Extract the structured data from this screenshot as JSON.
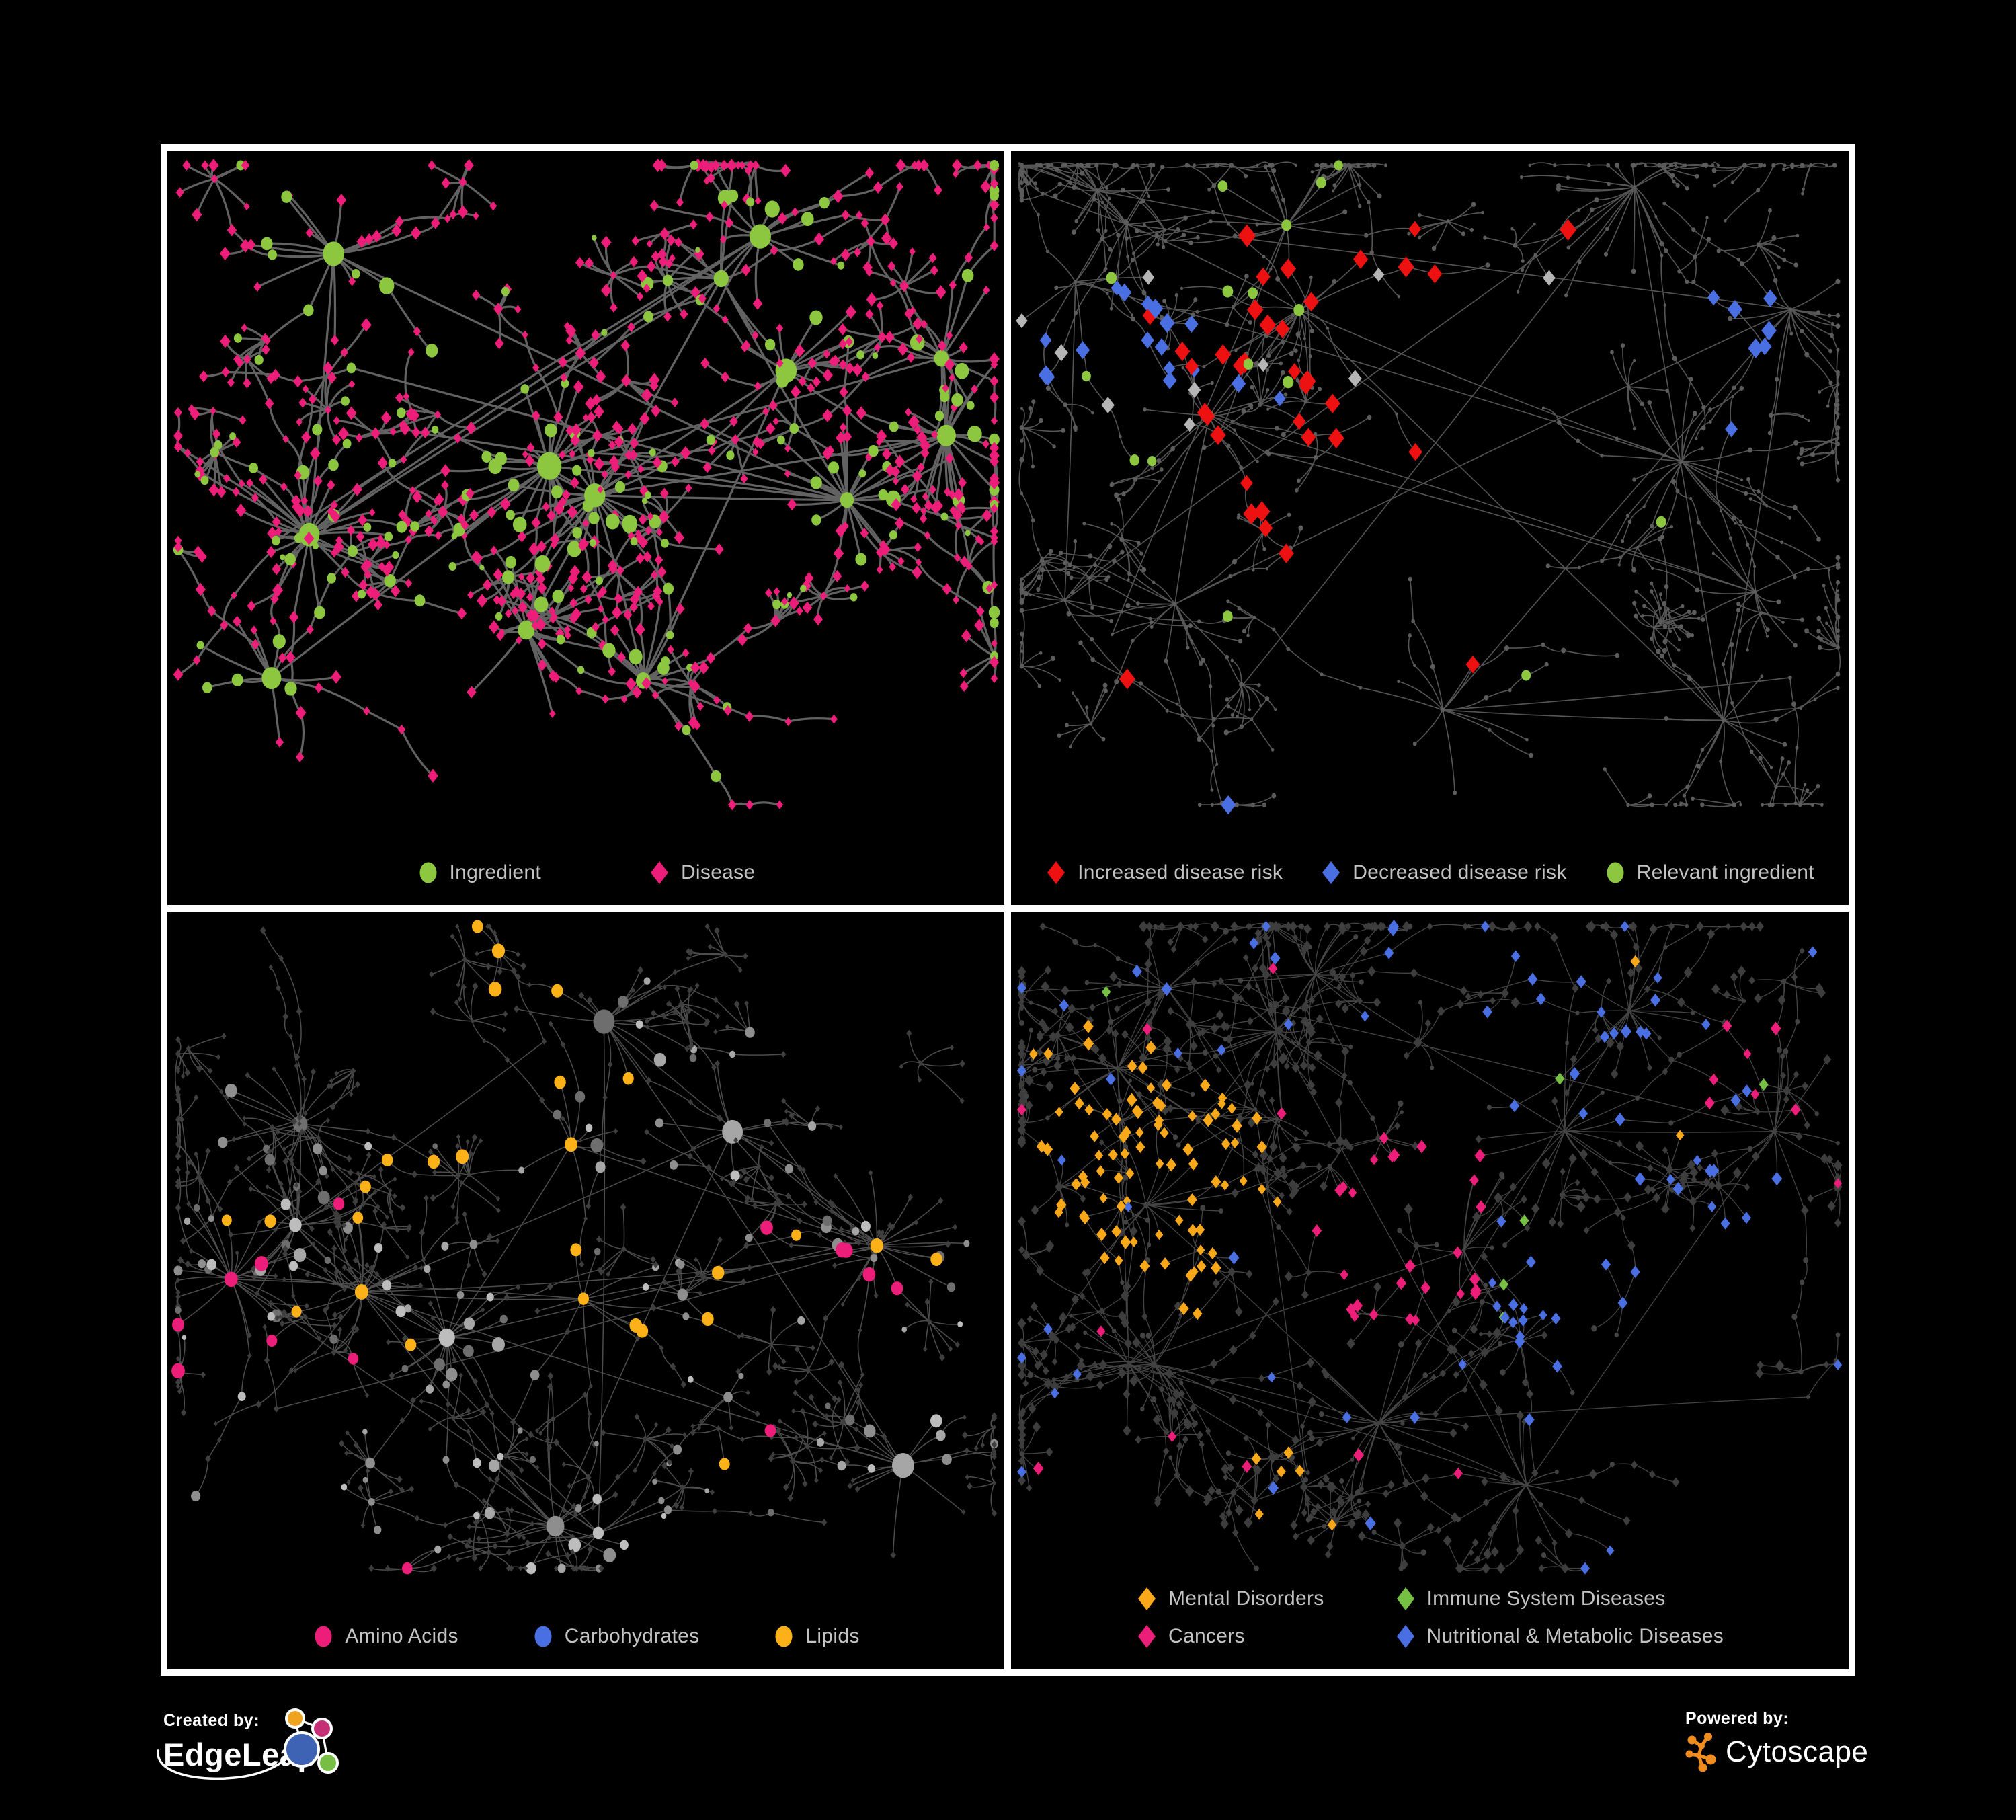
{
  "page": {
    "background": "#000000",
    "frame_color": "#ffffff",
    "legend_text_color": "#c3c3c3"
  },
  "panels": [
    {
      "id": "ingredient-disease",
      "legend_layout": "row",
      "legend_rows": [
        [
          {
            "label": "Ingredient",
            "marker": "circle",
            "color": "#8dc63f"
          },
          {
            "label": "Disease",
            "marker": "diamond",
            "color": "#ed1e79"
          }
        ]
      ],
      "network": {
        "seed": 11,
        "hubs": 13,
        "kid_min": 7,
        "kid_max": 30,
        "branch_p": 0.32,
        "leaf_circle_p": 0.34,
        "edge": {
          "color": "#6f6f6f",
          "width": 3.2,
          "opacity": 0.88
        },
        "style": {
          "mode": "typed",
          "circle_color": "#8dc63f",
          "circle_scale": 1.18,
          "diamond_color": "#ed1e79",
          "diamond_size": 8.2
        },
        "classes": []
      }
    },
    {
      "id": "disease-risk",
      "legend_layout": "row",
      "legend_rows": [
        [
          {
            "label": "Increased disease risk",
            "marker": "diamond",
            "color": "#ee1111"
          },
          {
            "label": "Decreased disease risk",
            "marker": "diamond",
            "color": "#4a6fe3"
          },
          {
            "label": "Relevant ingredient",
            "marker": "circle",
            "color": "#8dc63f"
          }
        ]
      ],
      "network": {
        "seed": 23,
        "hubs": 14,
        "kid_min": 6,
        "kid_max": 24,
        "branch_p": 0.58,
        "leaf_circle_p": 0.3,
        "edge": {
          "color": "#5e5e5e",
          "width": 1.6,
          "opacity": 0.9
        },
        "style": {
          "mode": "dots",
          "dot_color": "#5c5c5c",
          "dot_size": 3
        },
        "classes": [
          {
            "shape": "d",
            "color": "#ee1111",
            "size": 14,
            "base_p": 0.004,
            "centers": [
              [
                0.4,
                0.36,
                0.22,
                0.32
              ],
              [
                0.27,
                0.32,
                0.1,
                0.28
              ],
              [
                0.55,
                0.42,
                0.12,
                0.22
              ],
              [
                0.62,
                0.72,
                0.1,
                0.14
              ],
              [
                0.52,
                0.6,
                0.1,
                0.15
              ]
            ]
          },
          {
            "shape": "d",
            "color": "#4a6fe3",
            "size": 13,
            "base_p": 0.002,
            "centers": [
              [
                0.13,
                0.33,
                0.1,
                0.45
              ],
              [
                0.88,
                0.26,
                0.05,
                0.95
              ],
              [
                0.42,
                0.4,
                0.2,
                0.03
              ]
            ]
          },
          {
            "shape": "d",
            "color": "#b5b5b5",
            "size": 12,
            "base_p": 0.003,
            "centers": [
              [
                0.36,
                0.44,
                0.28,
                0.06
              ],
              [
                0.1,
                0.28,
                0.09,
                0.22
              ]
            ]
          },
          {
            "shape": "c",
            "color": "#8dc63f",
            "size": 8,
            "base_p": 0.012,
            "centers": [
              [
                0.4,
                0.38,
                0.3,
                0.38
              ],
              [
                0.18,
                0.28,
                0.15,
                0.25
              ]
            ]
          }
        ]
      }
    },
    {
      "id": "nutrient-classes",
      "legend_layout": "row",
      "legend_rows": [
        [
          {
            "label": "Amino Acids",
            "marker": "circle",
            "color": "#ed1e79"
          },
          {
            "label": "Carbohydrates",
            "marker": "circle",
            "color": "#4a6fe3"
          },
          {
            "label": "Lipids",
            "marker": "circle",
            "color": "#fbb117"
          }
        ]
      ],
      "network": {
        "seed": 37,
        "hubs": 13,
        "kid_min": 7,
        "kid_max": 28,
        "branch_p": 0.45,
        "leaf_circle_p": 0.4,
        "edge": {
          "color": "#9a9a9a",
          "width": 1.5,
          "opacity": 0.5
        },
        "style": {
          "mode": "gray-circles",
          "palette": [
            "#a6a6a6",
            "#8e8e8e",
            "#bdbdbd",
            "#6e6e6e"
          ],
          "circle_scale": 1.0,
          "diamond_color": "#3e3e3e",
          "diamond_size": 4.8
        },
        "classes": [
          {
            "shape": "c",
            "color": "#fbb117",
            "size": 10,
            "base_p": 0.05,
            "centers": [
              [
                0.33,
                0.22,
                0.16,
                0.6
              ],
              [
                0.28,
                0.4,
                0.22,
                0.2
              ],
              [
                0.56,
                0.56,
                0.1,
                0.35
              ],
              [
                0.75,
                0.3,
                0.12,
                0.12
              ]
            ]
          },
          {
            "shape": "c",
            "color": "#ed1e79",
            "size": 10,
            "base_p": 0.03,
            "centers": [
              [
                0.72,
                0.72,
                0.2,
                0.18
              ],
              [
                0.12,
                0.7,
                0.15,
                0.15
              ],
              [
                0.3,
                0.1,
                0.1,
                0.15
              ]
            ]
          },
          {
            "shape": "c",
            "color": "#4a6fe3",
            "size": 9,
            "base_p": 0.012,
            "centers": [
              [
                0.36,
                0.2,
                0.1,
                0.3
              ]
            ]
          }
        ]
      }
    },
    {
      "id": "disease-categories",
      "legend_layout": "grid2",
      "legend_rows": [
        [
          {
            "label": "Mental Disorders",
            "marker": "diamond",
            "color": "#f9a81a"
          },
          {
            "label": "Immune System Diseases",
            "marker": "diamond",
            "color": "#76c043"
          }
        ],
        [
          {
            "label": "Cancers",
            "marker": "diamond",
            "color": "#ed1e79"
          },
          {
            "label": "Nutritional & Metabolic Diseases",
            "marker": "diamond",
            "color": "#4a6fe3"
          }
        ]
      ],
      "network": {
        "seed": 51,
        "hubs": 14,
        "kid_min": 7,
        "kid_max": 26,
        "branch_p": 0.5,
        "leaf_circle_p": 0.25,
        "edge": {
          "color": "#9a9a9a",
          "width": 1.3,
          "opacity": 0.45
        },
        "style": {
          "mode": "dark-diamonds",
          "diamond_color": "#3d3d3d",
          "diamond_size": 6.8,
          "dot_color": "#424242",
          "dot_size": 3.6
        },
        "classes": [
          {
            "shape": "d",
            "color": "#f9a81a",
            "size": 9,
            "base_p": 0.01,
            "centers": [
              [
                0.16,
                0.4,
                0.13,
                0.85
              ],
              [
                0.24,
                0.5,
                0.09,
                0.45
              ],
              [
                0.1,
                0.28,
                0.09,
                0.3
              ],
              [
                0.3,
                0.88,
                0.06,
                0.3
              ]
            ]
          },
          {
            "shape": "d",
            "color": "#ed1e79",
            "size": 9,
            "base_p": 0.012,
            "centers": [
              [
                0.47,
                0.5,
                0.11,
                0.6
              ],
              [
                0.52,
                0.36,
                0.08,
                0.35
              ],
              [
                0.88,
                0.22,
                0.06,
                0.5
              ]
            ]
          },
          {
            "shape": "d",
            "color": "#76c043",
            "size": 9,
            "base_p": 0.005,
            "centers": [
              [
                0.45,
                0.45,
                0.3,
                0.02
              ]
            ]
          },
          {
            "shape": "d",
            "color": "#4a6fe3",
            "size": 9,
            "base_p": 0.05,
            "centers": [
              [
                0.66,
                0.6,
                0.09,
                0.7
              ],
              [
                0.77,
                0.3,
                0.12,
                0.4
              ],
              [
                0.6,
                0.12,
                0.18,
                0.3
              ],
              [
                0.9,
                0.45,
                0.08,
                0.35
              ],
              [
                0.35,
                0.7,
                0.08,
                0.3
              ]
            ]
          }
        ]
      }
    }
  ],
  "footer": {
    "created_by": {
      "label": "Created by:",
      "brand": "EdgeLeap"
    },
    "powered_by": {
      "label": "Powered by:",
      "brand": "Cytoscape"
    },
    "edgeleap_colors": {
      "orange": "#f0a31f",
      "magenta": "#c42f76",
      "blue": "#3e62b4",
      "green": "#76bf44"
    },
    "cytoscape_color": "#f08d1e"
  }
}
